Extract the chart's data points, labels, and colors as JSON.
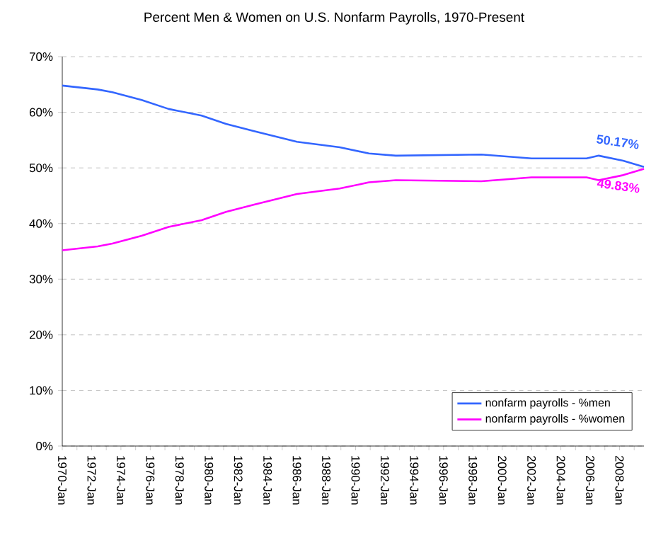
{
  "chart_data": {
    "type": "line",
    "title": "Percent Men & Women on U.S. Nonfarm Payrolls, 1970-Present",
    "x": [
      "1970-01",
      "1972-06",
      "1973-06",
      "1975-06",
      "1977-04",
      "1979-07",
      "1981-03",
      "1983-02",
      "1986-01",
      "1988-12",
      "1990-12",
      "1992-10",
      "1998-08",
      "2002-01",
      "2005-10",
      "2006-08",
      "2008-04",
      "2009-09"
    ],
    "series": [
      {
        "name": "nonfarm payrolls - %men",
        "color": "#3366ff",
        "values": [
          64.8,
          64.1,
          63.6,
          62.2,
          60.6,
          59.4,
          57.9,
          56.6,
          54.7,
          53.7,
          52.6,
          52.2,
          52.4,
          51.7,
          51.7,
          52.2,
          51.3,
          50.17
        ]
      },
      {
        "name": "nonfarm payrolls - %women",
        "color": "#ff00ff",
        "values": [
          35.2,
          35.9,
          36.4,
          37.8,
          39.4,
          40.6,
          42.1,
          43.4,
          45.3,
          46.3,
          47.4,
          47.8,
          47.6,
          48.3,
          48.3,
          47.8,
          48.7,
          49.83
        ]
      }
    ],
    "xlim": [
      "1970-01",
      "2009-09"
    ],
    "xticks": [
      {
        "value": "1970-01",
        "label": "1970-Jan"
      },
      {
        "value": "1971-01",
        "label": null
      },
      {
        "value": "1972-01",
        "label": "1972-Jan"
      },
      {
        "value": "1973-01",
        "label": null
      },
      {
        "value": "1974-01",
        "label": "1974-Jan"
      },
      {
        "value": "1975-01",
        "label": null
      },
      {
        "value": "1976-01",
        "label": "1976-Jan"
      },
      {
        "value": "1977-01",
        "label": null
      },
      {
        "value": "1978-01",
        "label": "1978-Jan"
      },
      {
        "value": "1979-01",
        "label": null
      },
      {
        "value": "1980-01",
        "label": "1980-Jan"
      },
      {
        "value": "1981-01",
        "label": null
      },
      {
        "value": "1982-01",
        "label": "1982-Jan"
      },
      {
        "value": "1983-01",
        "label": null
      },
      {
        "value": "1984-01",
        "label": "1984-Jan"
      },
      {
        "value": "1985-01",
        "label": null
      },
      {
        "value": "1986-01",
        "label": "1986-Jan"
      },
      {
        "value": "1987-01",
        "label": null
      },
      {
        "value": "1988-01",
        "label": "1988-Jan"
      },
      {
        "value": "1989-01",
        "label": null
      },
      {
        "value": "1990-01",
        "label": "1990-Jan"
      },
      {
        "value": "1991-01",
        "label": null
      },
      {
        "value": "1992-01",
        "label": "1992-Jan"
      },
      {
        "value": "1993-01",
        "label": null
      },
      {
        "value": "1994-01",
        "label": "1994-Jan"
      },
      {
        "value": "1995-01",
        "label": null
      },
      {
        "value": "1996-01",
        "label": "1996-Jan"
      },
      {
        "value": "1997-01",
        "label": null
      },
      {
        "value": "1998-01",
        "label": "1998-Jan"
      },
      {
        "value": "1999-01",
        "label": null
      },
      {
        "value": "2000-01",
        "label": "2000-Jan"
      },
      {
        "value": "2001-01",
        "label": null
      },
      {
        "value": "2002-01",
        "label": "2002-Jan"
      },
      {
        "value": "2003-01",
        "label": null
      },
      {
        "value": "2004-01",
        "label": "2004-Jan"
      },
      {
        "value": "2005-01",
        "label": null
      },
      {
        "value": "2006-01",
        "label": "2006-Jan"
      },
      {
        "value": "2007-01",
        "label": null
      },
      {
        "value": "2008-01",
        "label": "2008-Jan"
      },
      {
        "value": "2009-01",
        "label": null
      }
    ],
    "ylim": [
      0,
      70
    ],
    "yticks": [
      {
        "value": 0,
        "label": "0%"
      },
      {
        "value": 10,
        "label": "10%"
      },
      {
        "value": 20,
        "label": "20%"
      },
      {
        "value": 30,
        "label": "30%"
      },
      {
        "value": 40,
        "label": "40%"
      },
      {
        "value": 50,
        "label": "50%"
      },
      {
        "value": 60,
        "label": "60%"
      },
      {
        "value": 70,
        "label": "70%"
      }
    ],
    "annotations": [
      {
        "text": "50.17%",
        "x": "2009-09",
        "y": 50.17
      },
      {
        "text": "49.83%",
        "x": "2009-09",
        "y": 49.83
      }
    ],
    "grid": "y",
    "legend": "bottom right",
    "marker": "none",
    "line_style": "solid"
  }
}
